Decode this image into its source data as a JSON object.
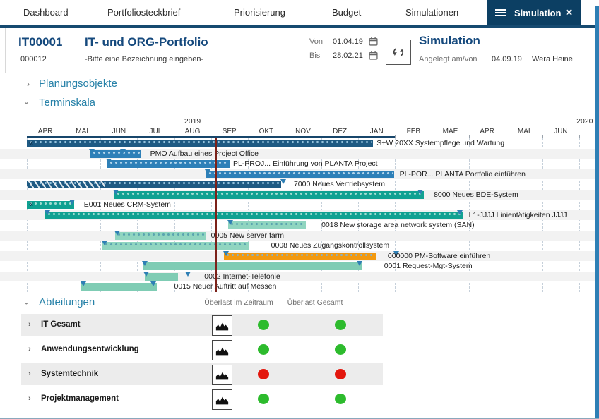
{
  "tabs": {
    "items": [
      "Dashboard",
      "Portfoliosteckbrief",
      "Priorisierung",
      "Budget",
      "Simulationen"
    ],
    "active": {
      "label": "Simulation"
    }
  },
  "icons": {
    "active_tab_menu": "menu-icon",
    "active_tab_close": "close-icon",
    "date_fields": "calendar-icon",
    "refresh": "refresh-icon",
    "department_histogram": "area-chart-icon",
    "collapsed": "chevron-right-icon",
    "expanded": "chevron-down-icon"
  },
  "header": {
    "portfolio_id": "IT00001",
    "portfolio_code": "000012",
    "portfolio_title": "IT- und ORG-Portfolio",
    "portfolio_subtitle": "-Bitte eine Bezeichnung eingeben-",
    "von_label": "Von",
    "von_value": "01.04.19",
    "bis_label": "Bis",
    "bis_value": "28.02.21",
    "panel_title": "Simulation",
    "created_label": "Angelegt am/von",
    "created_date": "04.09.19",
    "created_by": "Wera Heine"
  },
  "sections": {
    "planungsobjekte": "Planungsobjekte",
    "terminskala": "Terminskala",
    "abteilungen": "Abteilungen"
  },
  "chart_data": {
    "type": "gantt",
    "time_unit": "months_from_APR_2019",
    "axis": {
      "years": [
        {
          "label": "2019",
          "center_m": 4.5
        },
        {
          "label": "2020",
          "center_m": 15.15
        }
      ],
      "months": [
        "APR",
        "MAI",
        "JUN",
        "JUL",
        "AUG",
        "SEP",
        "OKT",
        "NOV",
        "DEZ",
        "JAN",
        "FEB",
        "MAE",
        "APR",
        "MAI",
        "JUN"
      ],
      "visible_months": 15.54,
      "dark_period_end_m": 10
    },
    "today_line_m": 5.12,
    "reference_line_m": 9.1,
    "tasks": [
      {
        "label": "S+W 20XX Systempflege und Wartung",
        "start_m": 0,
        "end_m": 9.4,
        "style": "navy",
        "dotted": true,
        "left_arrow": true,
        "tri_m": [],
        "label_m": 9.5
      },
      {
        "label": "PMO Aufbau eines Project Office",
        "start_m": 1.73,
        "end_m": 3.11,
        "style": "blue",
        "dotted": true,
        "tri_m": [
          1.78,
          2.62
        ],
        "label_m": 3.35
      },
      {
        "label": "PL-PROJ... Einführung von PLANTA Project",
        "start_m": 2.19,
        "end_m": 5.51,
        "style": "blue",
        "dotted": true,
        "tri_m": [
          2.24
        ],
        "label_m": 5.6
      },
      {
        "label": "PL-POR... PLANTA Portfolio einführen",
        "start_m": 4.87,
        "end_m": 9.98,
        "style": "blue",
        "dotted": true,
        "tri_m": [
          4.92
        ],
        "label_m": 10.12
      },
      {
        "label": "7000 Neues Vertriebsystem",
        "start_m": 0,
        "end_m": 6.91,
        "style": "navy",
        "dotted": true,
        "hatch_end_m": 2.11,
        "tri_m": [
          6.97
        ],
        "label_m": 7.25
      },
      {
        "label": "8000 Neues BDE-System",
        "start_m": 2.38,
        "end_m": 10.78,
        "style": "teal",
        "dotted": true,
        "tri_m": [
          2.43,
          10.7
        ],
        "label_m": 11.05
      },
      {
        "label": "E001 Neues CRM-System",
        "start_m": 0,
        "end_m": 1.29,
        "style": "teal",
        "dotted": true,
        "left_arrow": true,
        "tri_m": [
          1.24
        ],
        "label_m": 1.55
      },
      {
        "label": "L1-JJJJ Linientätigkeiten JJJJ",
        "start_m": 0.5,
        "end_m": 11.84,
        "style": "teal",
        "dotted": true,
        "tri_m": [
          0.56,
          11.76
        ],
        "label_m": 12.0
      },
      {
        "label": "0018 New storage area network system (SAN)",
        "start_m": 5.47,
        "end_m": 7.58,
        "style": "mint",
        "dotted": true,
        "tri_m": [
          5.53
        ],
        "label_m": 8.0
      },
      {
        "label": "0005 New server farm",
        "start_m": 2.4,
        "end_m": 4.87,
        "style": "mint",
        "dotted": true,
        "tri_m": [
          2.46
        ],
        "label_m": 5.0
      },
      {
        "label": "0008 Neues Zugangskontrollsystem",
        "start_m": 2.05,
        "end_m": 6.02,
        "style": "mint",
        "dotted": true,
        "tri_m": [
          2.11
        ],
        "label_m": 6.63
      },
      {
        "label": "000000 PM-Software einführen",
        "start_m": 5.35,
        "end_m": 9.48,
        "style": "orange",
        "dotted": true,
        "tri_m": [
          5.41,
          10.05
        ],
        "label_m": 9.8
      },
      {
        "label": "0001 Request-Mgt-System",
        "start_m": 3.15,
        "end_m": 9.11,
        "style": "mint2",
        "dotted": false,
        "tri_m": [
          3.21,
          9.04
        ],
        "label_m": 9.7
      },
      {
        "label": "0002 Internet-Telefonie",
        "start_m": 3.2,
        "end_m": 4.1,
        "style": "mint2",
        "dotted": false,
        "tri_m": [
          3.26,
          4.38
        ],
        "label_m": 4.82
      },
      {
        "label": "0015 Neuer Auftritt auf Messen",
        "start_m": 1.48,
        "end_m": 3.53,
        "style": "mint2",
        "dotted": false,
        "tri_m": [
          1.54,
          3.44
        ],
        "label_m": 4.0
      }
    ]
  },
  "departments": {
    "columns": [
      "Überlast im Zeitraum",
      "Überlast Gesamt"
    ],
    "rows": [
      {
        "name": "IT Gesamt",
        "ueberlast_im_zeitraum": "green",
        "ueberlast_gesamt": "green"
      },
      {
        "name": "Anwendungsentwicklung",
        "ueberlast_im_zeitraum": "green",
        "ueberlast_gesamt": "green"
      },
      {
        "name": "Systemtechnik",
        "ueberlast_im_zeitraum": "red",
        "ueberlast_gesamt": "red"
      },
      {
        "name": "Projektmanagement",
        "ueberlast_im_zeitraum": "green",
        "ueberlast_gesamt": "green"
      }
    ]
  },
  "colors": {
    "active_tab": "#0c3f63",
    "accent_blue": "#15497d",
    "section_title": "#2681a8",
    "navy_bar": "#1e5a83",
    "blue_bar": "#2e80b8",
    "teal_bar": "#10a192",
    "mint_bar": "#90d5c0",
    "mint2_bar": "#7fccb4",
    "orange_bar": "#f2990f",
    "triangle": "#2e7fb5",
    "today_line": "#7c221a",
    "reference_line": "#8a939e",
    "green_status": "#2dbb2d",
    "red_status": "#e3170d"
  }
}
